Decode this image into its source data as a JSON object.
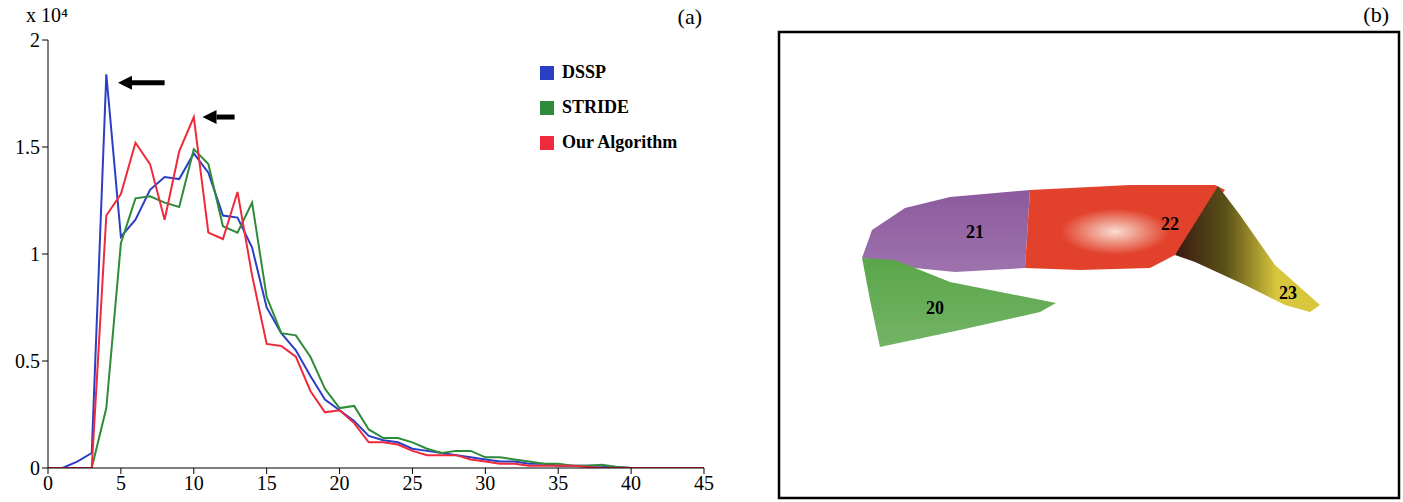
{
  "chart_data": {
    "type": "line",
    "title": "(a)",
    "ylabel": "x 10⁴",
    "x": [
      0,
      1,
      2,
      3,
      4,
      5,
      6,
      7,
      8,
      9,
      10,
      11,
      12,
      13,
      14,
      15,
      16,
      17,
      18,
      19,
      20,
      21,
      22,
      23,
      24,
      25,
      26,
      27,
      28,
      29,
      30,
      31,
      32,
      33,
      34,
      35,
      36,
      37,
      38,
      39,
      40,
      41,
      42,
      43,
      44,
      45
    ],
    "series": [
      {
        "name": "DSSP",
        "color": "#2b3fc4",
        "values": [
          0,
          0,
          0.03,
          0.07,
          1.84,
          1.08,
          1.16,
          1.3,
          1.36,
          1.35,
          1.47,
          1.38,
          1.18,
          1.17,
          1.03,
          0.75,
          0.63,
          0.55,
          0.43,
          0.32,
          0.27,
          0.22,
          0.15,
          0.13,
          0.12,
          0.09,
          0.08,
          0.07,
          0.06,
          0.05,
          0.04,
          0.03,
          0.03,
          0.02,
          0.02,
          0.01,
          0.01,
          0.01,
          0.01,
          0.005,
          0,
          0,
          0,
          0,
          0,
          0
        ]
      },
      {
        "name": "STRIDE",
        "color": "#2e8b3a",
        "values": [
          0,
          0,
          0,
          0,
          0.28,
          1.05,
          1.26,
          1.27,
          1.24,
          1.22,
          1.49,
          1.42,
          1.13,
          1.1,
          1.24,
          0.8,
          0.63,
          0.62,
          0.52,
          0.37,
          0.28,
          0.29,
          0.18,
          0.14,
          0.14,
          0.12,
          0.09,
          0.07,
          0.08,
          0.08,
          0.05,
          0.05,
          0.04,
          0.03,
          0.02,
          0.02,
          0.01,
          0.01,
          0.015,
          0.005,
          0,
          0,
          0,
          0,
          0,
          0
        ]
      },
      {
        "name": "Our Algorithm",
        "color": "#ee2a3c",
        "values": [
          0,
          0,
          0,
          0,
          1.18,
          1.28,
          1.52,
          1.42,
          1.16,
          1.48,
          1.64,
          1.1,
          1.07,
          1.29,
          0.9,
          0.58,
          0.57,
          0.52,
          0.36,
          0.26,
          0.27,
          0.21,
          0.12,
          0.12,
          0.11,
          0.08,
          0.06,
          0.06,
          0.06,
          0.04,
          0.03,
          0.02,
          0.02,
          0.01,
          0.01,
          0.01,
          0.01,
          0.005,
          0,
          0,
          0,
          0,
          0,
          0,
          0,
          0
        ]
      }
    ],
    "xlim": [
      0,
      45
    ],
    "xticks": [
      0,
      5,
      10,
      15,
      20,
      25,
      30,
      35,
      40,
      45
    ],
    "ylim": [
      0,
      2
    ],
    "yticks": [
      0,
      0.5,
      1,
      1.5,
      2
    ],
    "legend": "top-right",
    "grid": false,
    "annotations": [
      {
        "type": "arrow",
        "x": [
          8,
          4.8
        ],
        "y": [
          1.8,
          1.8
        ]
      },
      {
        "type": "arrow",
        "x": [
          12.8,
          10.6
        ],
        "y": [
          1.64,
          1.64
        ]
      }
    ]
  },
  "diagram": {
    "title": "(b)",
    "segments": [
      {
        "label": "20",
        "color": "#5aa64a"
      },
      {
        "label": "21",
        "color": "#8c5a9e"
      },
      {
        "label": "22",
        "color": "#e2422c"
      },
      {
        "label": "23",
        "color": "#d8c63c"
      }
    ]
  }
}
